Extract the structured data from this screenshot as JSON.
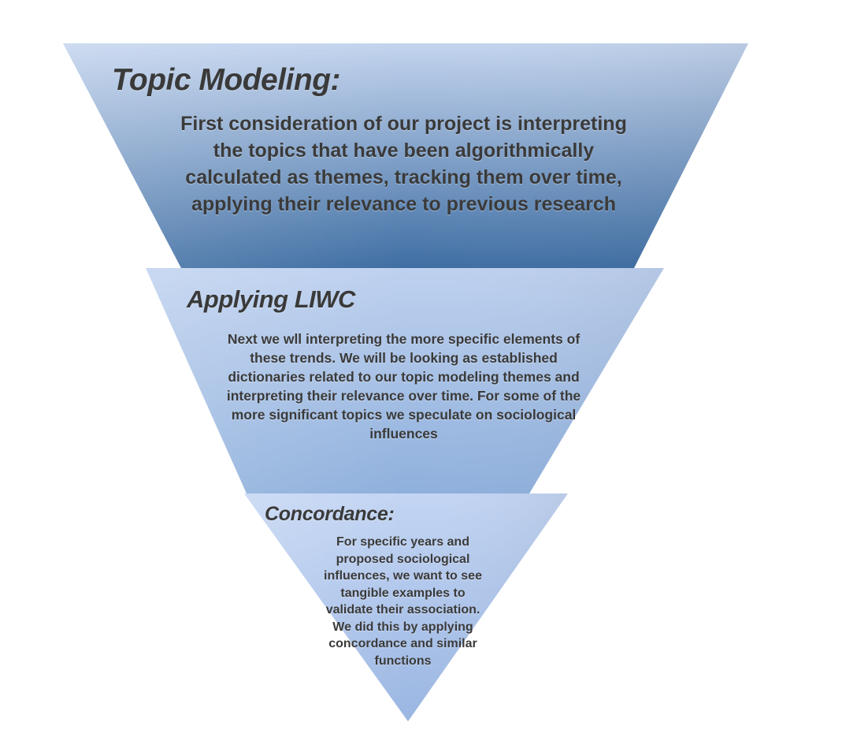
{
  "diagram": {
    "type": "inverted-funnel",
    "tiers": [
      {
        "title": "Topic Modeling:",
        "text": "First consideration of our project is interpreting the topics that have been algorithmically calculated as themes, tracking them over time, applying their relevance to previous research",
        "colors": {
          "top": "#c3d4ee",
          "bottom": "#3f6ea3"
        }
      },
      {
        "title": "Applying LIWC",
        "text": "Next we wll interpreting the more specific elements of these trends. We will be looking as established dictionaries related to our topic modeling themes and interpreting their relevance over time. For some of the more significant topics we speculate on sociological influences",
        "colors": {
          "top": "#bed1ef",
          "bottom": "#8fb0dc"
        }
      },
      {
        "title": "Concordance:",
        "text": "For specific years and proposed sociological influences, we want to see tangible examples to validate their association. We did this by applying concordance and similar functions",
        "colors": {
          "top": "#c3d5f3",
          "bottom": "#9ab6e2"
        }
      }
    ],
    "text_color": "#3a3a3a"
  }
}
